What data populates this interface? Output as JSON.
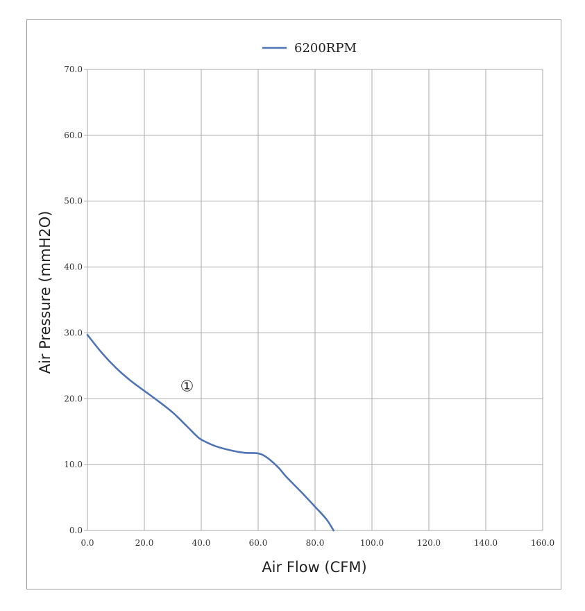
{
  "chart_data": {
    "type": "line",
    "title": "",
    "xlabel": "Air Flow (CFM)",
    "ylabel": "Air Pressure (mmH2O)",
    "xlim": [
      0,
      160
    ],
    "ylim": [
      0,
      70
    ],
    "xticks": [
      "0.0",
      "20.0",
      "40.0",
      "60.0",
      "80.0",
      "100.0",
      "120.0",
      "140.0",
      "160.0"
    ],
    "yticks": [
      "0.0",
      "10.0",
      "20.0",
      "30.0",
      "40.0",
      "50.0",
      "60.0",
      "70.0"
    ],
    "grid": true,
    "legend_position": "top-center",
    "series": [
      {
        "name": "6200RPM",
        "color": "#4f74b4",
        "x": [
          0,
          5,
          10,
          15,
          20,
          25,
          30,
          35,
          38,
          40,
          45,
          50,
          55,
          60,
          63,
          67,
          70,
          75,
          80,
          84,
          86.5
        ],
        "y": [
          29.7,
          27.0,
          24.7,
          22.8,
          21.2,
          19.6,
          17.9,
          15.8,
          14.5,
          13.8,
          12.8,
          12.2,
          11.8,
          11.7,
          11.1,
          9.6,
          8.1,
          5.9,
          3.6,
          1.7,
          0.0
        ]
      }
    ],
    "annotations": [
      {
        "text": "①",
        "x": 35,
        "y": 22
      }
    ]
  }
}
